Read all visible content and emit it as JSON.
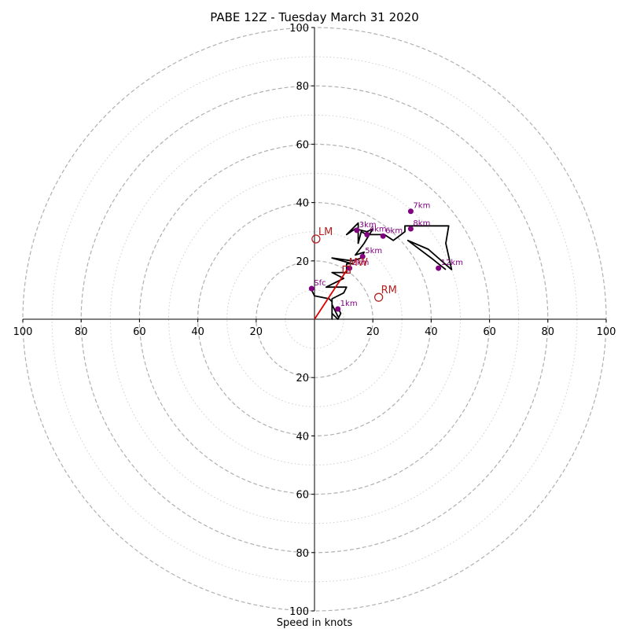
{
  "chart_data": {
    "type": "hodograph",
    "title": "PABE 12Z - Tuesday March 31 2020",
    "xlabel": "Speed in knots",
    "units": "knots",
    "range": [
      -100,
      100
    ],
    "major_rings": [
      20,
      40,
      60,
      80,
      100
    ],
    "minor_rings": [
      10,
      30,
      50,
      70,
      90
    ],
    "tick_labels_x": [
      "100",
      "80",
      "60",
      "40",
      "20",
      "20",
      "40",
      "60",
      "80",
      "100"
    ],
    "tick_values_x": [
      -100,
      -80,
      -60,
      -40,
      -20,
      20,
      40,
      60,
      80,
      100
    ],
    "tick_labels_y": [
      "100",
      "80",
      "60",
      "40",
      "20",
      "20",
      "40",
      "60",
      "80",
      "100"
    ],
    "tick_values_y": [
      100,
      80,
      60,
      40,
      20,
      -20,
      -40,
      -60,
      -80,
      -100
    ],
    "grid": true,
    "colors": {
      "trace": "#000000",
      "height_marker": "#800080",
      "storm_motion": "#b22222",
      "mean_wind_vector": "#e00000",
      "major_ring": "#b0b0b0",
      "minor_ring": "#cfcfcf",
      "axes": "#000000"
    },
    "trace": [
      [
        -1,
        10.5
      ],
      [
        -1,
        10
      ],
      [
        0,
        8
      ],
      [
        5,
        7
      ],
      [
        6,
        6
      ],
      [
        6,
        2
      ],
      [
        8,
        0
      ],
      [
        9,
        2
      ],
      [
        8,
        4
      ],
      [
        7,
        3
      ],
      [
        8,
        1
      ],
      [
        6,
        5
      ],
      [
        6,
        0
      ],
      [
        6,
        7
      ],
      [
        10,
        9
      ],
      [
        11,
        11
      ],
      [
        4,
        11
      ],
      [
        10,
        14
      ],
      [
        6,
        16
      ],
      [
        11,
        16
      ],
      [
        11,
        19
      ],
      [
        13,
        19
      ],
      [
        6,
        21
      ],
      [
        13,
        20
      ],
      [
        16,
        21
      ],
      [
        17,
        23
      ],
      [
        14,
        22
      ],
      [
        17,
        26
      ],
      [
        20,
        31
      ],
      [
        18,
        30
      ],
      [
        14,
        31
      ],
      [
        11,
        29
      ],
      [
        15,
        33
      ],
      [
        15,
        30
      ],
      [
        15,
        26
      ],
      [
        16,
        30
      ],
      [
        18,
        29
      ],
      [
        24,
        29
      ],
      [
        27,
        27
      ],
      [
        31,
        30
      ],
      [
        31,
        32
      ],
      [
        46,
        32
      ],
      [
        45,
        26
      ],
      [
        47,
        17
      ],
      [
        39,
        24
      ],
      [
        32,
        27
      ],
      [
        40,
        21
      ],
      [
        45,
        17
      ]
    ],
    "height_markers": [
      {
        "label": "Sfc",
        "u": -1,
        "v": 10.5
      },
      {
        "label": "1km",
        "u": 8,
        "v": 3.5
      },
      {
        "label": "2km",
        "u": 12,
        "v": 17.5
      },
      {
        "label": "3km",
        "u": 14.5,
        "v": 30.5
      },
      {
        "label": "4km",
        "u": 18,
        "v": 29
      },
      {
        "label": "5km",
        "u": 16.5,
        "v": 21.5
      },
      {
        "label": "6km",
        "u": 23.5,
        "v": 28.5
      },
      {
        "label": "7km",
        "u": 33,
        "v": 37
      },
      {
        "label": "8km",
        "u": 33,
        "v": 31
      },
      {
        "label": "12km",
        "u": 42.5,
        "v": 17.5
      }
    ],
    "storm_motion": [
      {
        "label": "LM",
        "u": 0.5,
        "v": 27.5
      },
      {
        "label": "RM",
        "u": 22,
        "v": 7.5
      }
    ],
    "mean_wind": {
      "label": "MW",
      "u": 11,
      "v": 17
    },
    "mean_wind_vector": {
      "u": 11.5,
      "v": 17.5
    }
  }
}
